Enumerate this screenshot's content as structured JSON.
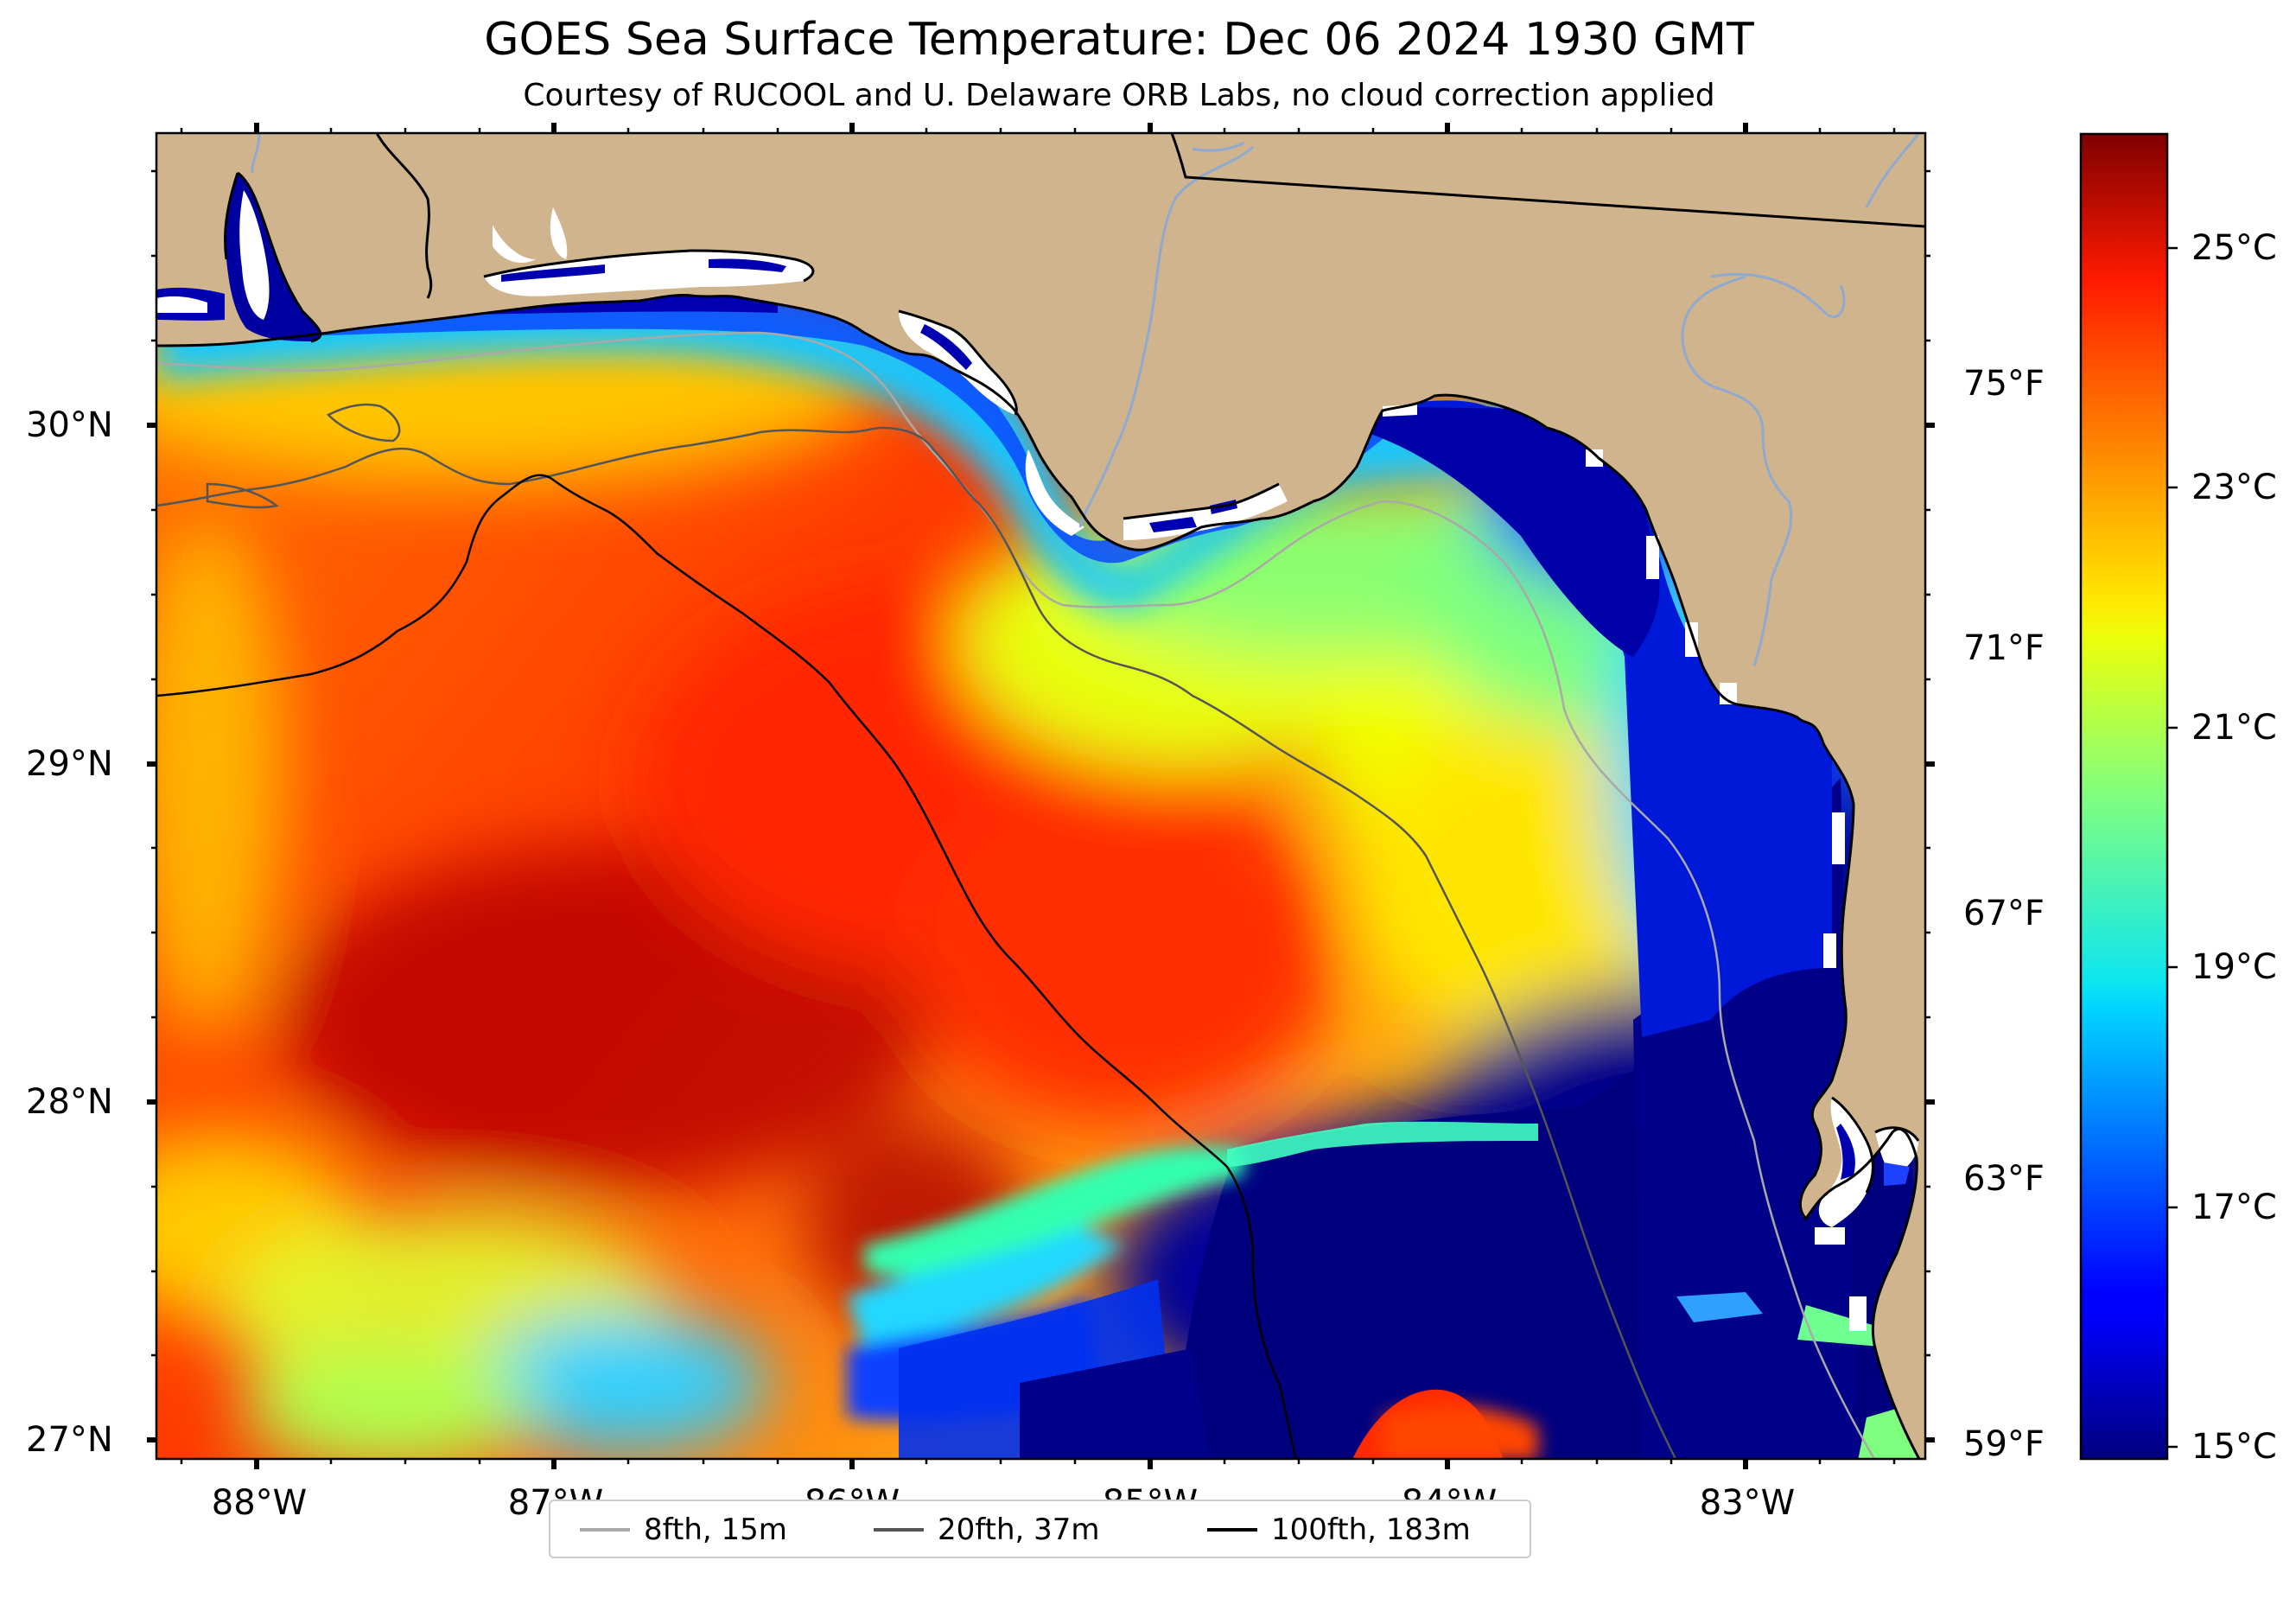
{
  "title": "GOES Sea Surface Temperature: Dec 06 2024 1930 GMT",
  "subtitle": "Courtesy of RUCOOL and U. Delaware ORB Labs, no cloud correction applied",
  "map": {
    "extent": {
      "lon_min": -88.33,
      "lon_max": -82.4,
      "lat_min": 26.93,
      "lat_max": 30.86
    },
    "colors": {
      "land": "#d0b48e",
      "coast": "#000000",
      "river": "#8fa9cf",
      "clouds": "#ffffff"
    },
    "lat_ticks": [
      "30°N",
      "29°N",
      "28°N",
      "27°N"
    ],
    "lon_ticks": [
      "88°W",
      "87°W",
      "86°W",
      "85°W",
      "84°W",
      "83°W"
    ],
    "fahrenheit_ticks": [
      "75°F",
      "71°F",
      "67°F",
      "63°F",
      "59°F"
    ]
  },
  "colorbar": {
    "colormap": "jet",
    "min_c": 14.8,
    "max_c": 26.2,
    "ticks_c": [
      "25°C",
      "23°C",
      "21°C",
      "19°C",
      "17°C",
      "15°C"
    ]
  },
  "legend": {
    "items": [
      {
        "label": "8fth, 15m",
        "color": "#a9a9a9"
      },
      {
        "label": "20fth, 37m",
        "color": "#555555"
      },
      {
        "label": "100fth, 183m",
        "color": "#000000"
      }
    ]
  }
}
